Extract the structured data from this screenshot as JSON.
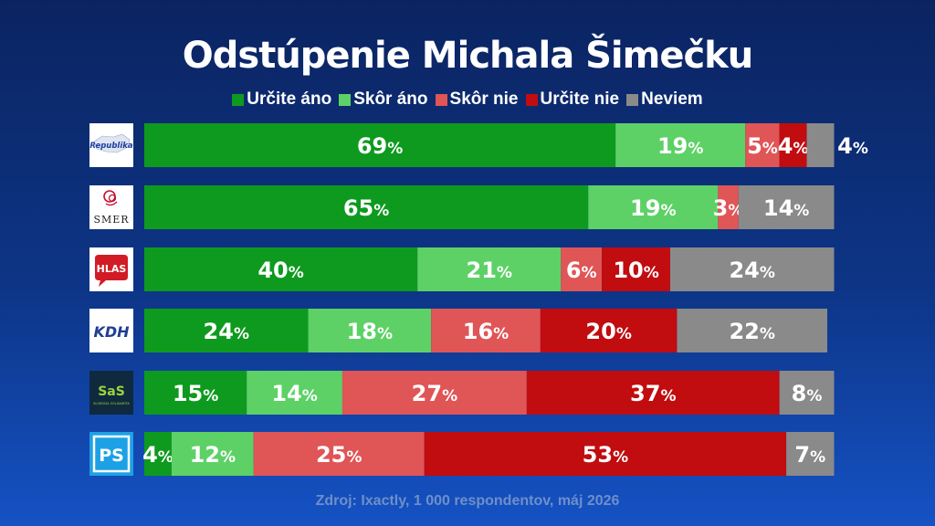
{
  "colors": {
    "urcite_ano": "#0e9a1f",
    "skor_ano": "#5dd166",
    "skor_nie": "#e05556",
    "urcite_nie": "#c10c10",
    "neviem": "#8a8a8a"
  },
  "parties": [
    {
      "icon": "republika-logo",
      "text": "Republika"
    },
    {
      "icon": "smer-logo",
      "text": "SMER"
    },
    {
      "icon": "hlas-logo",
      "text": "HLAS"
    },
    {
      "icon": "kdh-logo",
      "text": "KDH"
    },
    {
      "icon": "sas-logo",
      "text": "SaS",
      "subtext": "SLOBODA SOLIDARITA"
    },
    {
      "icon": "ps-logo",
      "text": "PS"
    }
  ],
  "source": "Zdroj: Ixactly, 1 000 respondentov, máj 2026",
  "chart_data": {
    "type": "bar",
    "orientation": "horizontal",
    "stacked": true,
    "title": "Odstúpenie Michala Šimečku",
    "legend_position": "top",
    "categories": [
      "Republika",
      "SMER",
      "HLAS",
      "KDH",
      "SaS",
      "PS"
    ],
    "value_suffix": "%",
    "series": [
      {
        "name": "Určite áno",
        "color": "#0e9a1f",
        "values": [
          69,
          65,
          40,
          24,
          15,
          4
        ]
      },
      {
        "name": "Skôr áno",
        "color": "#5dd166",
        "values": [
          19,
          19,
          21,
          18,
          14,
          12
        ]
      },
      {
        "name": "Skôr nie",
        "color": "#e05556",
        "values": [
          5,
          3,
          6,
          16,
          27,
          25
        ]
      },
      {
        "name": "Určite nie",
        "color": "#c10c10",
        "values": [
          4,
          0,
          10,
          20,
          37,
          53
        ]
      },
      {
        "name": "Neviem",
        "color": "#8a8a8a",
        "values": [
          4,
          14,
          24,
          22,
          8,
          7
        ]
      }
    ]
  }
}
